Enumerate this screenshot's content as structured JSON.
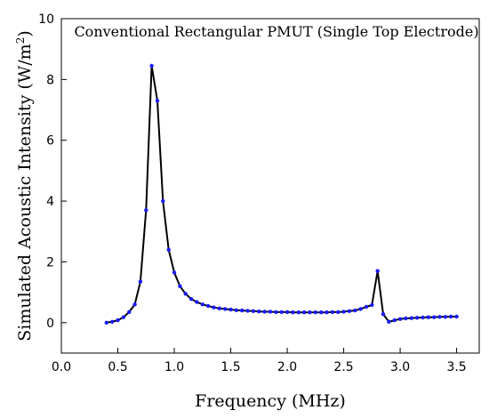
{
  "chart_data": {
    "type": "line",
    "title": "Conventional Rectangular PMUT (Single Top Electrode)",
    "xlabel": "Frequency (MHz)",
    "ylabel_main": "Simulated Acoustic Intensity (W/m",
    "ylabel_sup": "2",
    "ylabel_end": ")",
    "xlim": [
      0.0,
      3.7
    ],
    "ylim": [
      -1,
      10
    ],
    "xticks": [
      "0.0",
      "0.5",
      "1.0",
      "1.5",
      "2.0",
      "2.5",
      "3.0",
      "3.5"
    ],
    "yticks": [
      "0",
      "2",
      "4",
      "6",
      "8",
      "10"
    ],
    "grid": false,
    "line_color": "#000000",
    "marker_color": "#1a1aff",
    "series": [
      {
        "x": [
          0.4,
          0.45,
          0.5,
          0.55,
          0.6,
          0.65,
          0.7,
          0.75,
          0.8,
          0.85,
          0.9,
          0.95,
          1.0,
          1.05,
          1.1,
          1.15,
          1.2,
          1.25,
          1.3,
          1.35,
          1.4,
          1.45,
          1.5,
          1.55,
          1.6,
          1.65,
          1.7,
          1.75,
          1.8,
          1.85,
          1.9,
          1.95,
          2.0,
          2.05,
          2.1,
          2.15,
          2.2,
          2.25,
          2.3,
          2.35,
          2.4,
          2.45,
          2.5,
          2.55,
          2.6,
          2.65,
          2.7,
          2.75,
          2.8,
          2.85,
          2.9,
          2.95,
          3.0,
          3.05,
          3.1,
          3.15,
          3.2,
          3.25,
          3.3,
          3.35,
          3.4,
          3.45,
          3.5
        ],
        "y": [
          0.0,
          0.03,
          0.08,
          0.18,
          0.35,
          0.6,
          1.35,
          3.7,
          8.45,
          7.3,
          4.0,
          2.4,
          1.65,
          1.2,
          0.95,
          0.78,
          0.68,
          0.6,
          0.55,
          0.5,
          0.47,
          0.45,
          0.43,
          0.41,
          0.4,
          0.39,
          0.38,
          0.37,
          0.36,
          0.36,
          0.35,
          0.35,
          0.35,
          0.34,
          0.34,
          0.34,
          0.34,
          0.34,
          0.34,
          0.34,
          0.35,
          0.35,
          0.36,
          0.38,
          0.4,
          0.45,
          0.52,
          0.58,
          1.7,
          0.28,
          0.03,
          0.08,
          0.12,
          0.14,
          0.15,
          0.16,
          0.17,
          0.18,
          0.18,
          0.19,
          0.19,
          0.2,
          0.2
        ]
      }
    ]
  }
}
